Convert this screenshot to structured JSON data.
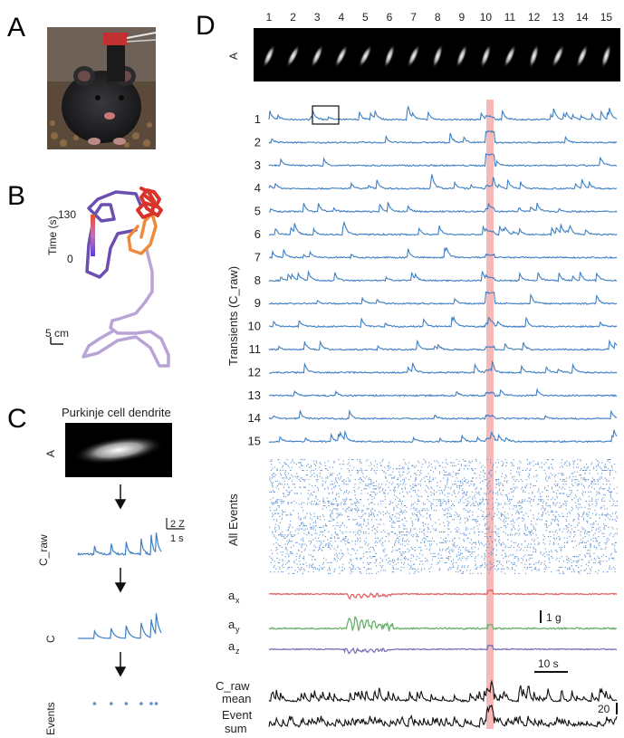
{
  "panels": {
    "A": {
      "letter": "A"
    },
    "B": {
      "letter": "B",
      "colorbar_max": "130",
      "colorbar_min": "0",
      "colorbar_label": "Time (s)",
      "scalebar": "5 cm"
    },
    "C": {
      "letter": "C",
      "title": "Purkinje cell dendrite",
      "row_labels": [
        "A",
        "C_raw",
        "C",
        "Events"
      ],
      "scale_z": "2 Z",
      "scale_t": "1 s"
    },
    "D": {
      "letter": "D",
      "cell_numbers": [
        "1",
        "2",
        "3",
        "4",
        "5",
        "6",
        "7",
        "8",
        "9",
        "10",
        "11",
        "12",
        "13",
        "14",
        "15"
      ],
      "footprint_label": "A",
      "transients_label": "Transients (C_raw)",
      "trace_numbers": [
        "1",
        "2",
        "3",
        "4",
        "5",
        "6",
        "7",
        "8",
        "9",
        "10",
        "11",
        "12",
        "13",
        "14",
        "15"
      ],
      "events_label": "All Events",
      "accel_labels": {
        "x": "x",
        "y": "y",
        "z": "z",
        "base": "a"
      },
      "scale_g": "1 g",
      "scale_time": "10 s",
      "mean_label": [
        "C_raw",
        "mean"
      ],
      "sum_label": [
        "Event",
        "sum"
      ],
      "scale_20": "20"
    }
  },
  "colors": {
    "trace_blue": "#3f7fc4",
    "event_blue": "#5a8fd0",
    "accel_x": "#e06666",
    "accel_y": "#6aaf6a",
    "accel_z": "#7b75b8",
    "highlight": "#f4a0a0",
    "traj_early": "#6a4fb0",
    "traj_mid": "#f08a3a",
    "traj_late": "#d9342b"
  }
}
